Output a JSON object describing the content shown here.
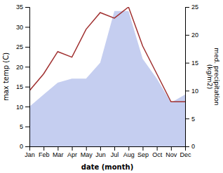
{
  "chart_data": {
    "type": "line",
    "x_label": "date (month)",
    "y_label": "max temp (C)",
    "y2_label": "med. precipitation\n(kg/m2)",
    "categories": [
      "Jan",
      "Feb",
      "Mar",
      "Apr",
      "May",
      "Jun",
      "Jul",
      "Aug",
      "Sep",
      "Oct",
      "Nov",
      "Dec"
    ],
    "series": [
      {
        "type": "area",
        "color": "#c5cef0",
        "values": [
          10,
          13,
          16,
          17,
          17,
          21,
          34,
          34,
          22,
          17,
          11,
          13
        ]
      },
      {
        "type": "line",
        "color": "#a03030",
        "axis": "y2",
        "values": [
          10,
          13,
          17,
          16,
          21,
          24,
          23,
          25,
          18,
          13,
          8,
          8
        ]
      }
    ],
    "ylim": [
      0,
      35
    ],
    "yticks": [
      0,
      5,
      10,
      15,
      20,
      25,
      30,
      35
    ],
    "y2lim": [
      0,
      25
    ],
    "y2ticks": [
      0,
      5,
      10,
      15,
      20,
      25
    ]
  }
}
